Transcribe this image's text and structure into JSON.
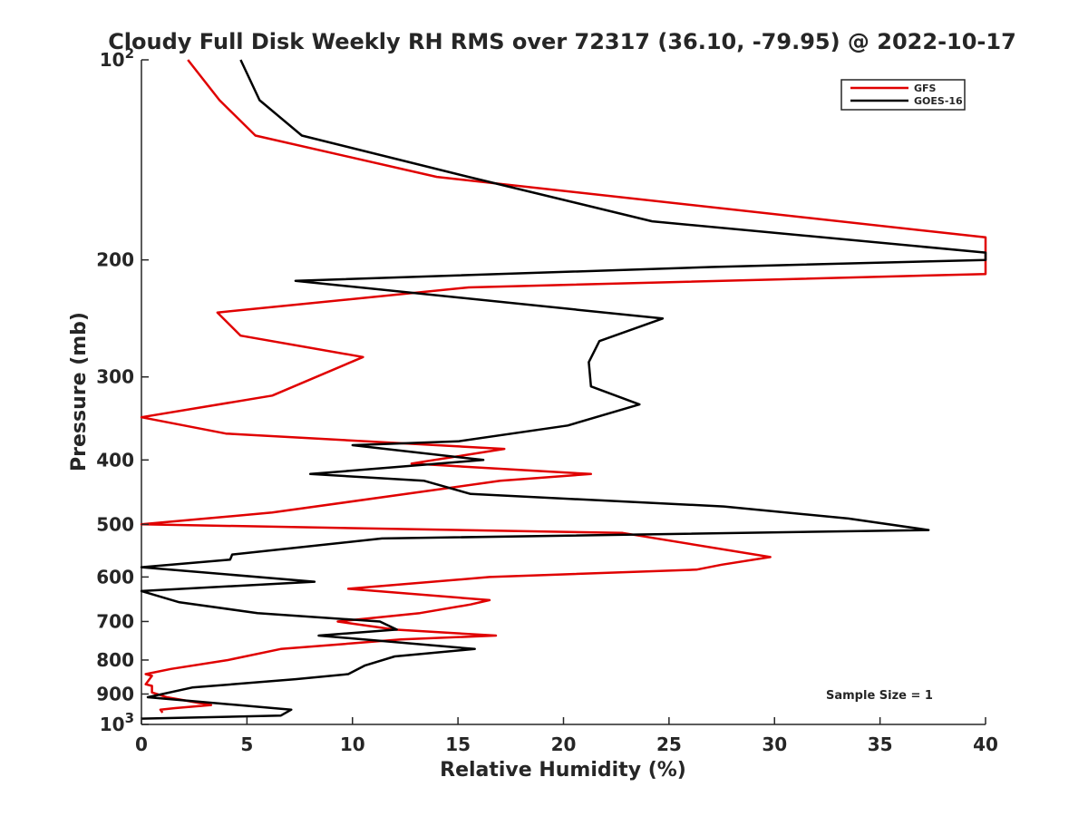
{
  "chart_data": {
    "type": "line",
    "title": "Cloudy Full Disk Weekly RH RMS over 72317 (36.10, -79.95) @ 2022-10-17",
    "xlabel": "Relative Humidity (%)",
    "ylabel": "Pressure (mb)",
    "xlim": [
      0,
      40
    ],
    "ylim": [
      100,
      1000
    ],
    "y_scale": "log",
    "y_reversed": true,
    "grid": false,
    "legend_position": "top-right",
    "x_ticks": [
      "0",
      "5",
      "10",
      "15",
      "20",
      "25",
      "30",
      "35",
      "40"
    ],
    "y_ticks": [
      {
        "value": 100,
        "base": "10",
        "exp": "2"
      },
      {
        "value": 200,
        "label": "200"
      },
      {
        "value": 300,
        "label": "300"
      },
      {
        "value": 400,
        "label": "400"
      },
      {
        "value": 500,
        "label": "500"
      },
      {
        "value": 600,
        "label": "600"
      },
      {
        "value": 700,
        "label": "700"
      },
      {
        "value": 800,
        "label": "800"
      },
      {
        "value": 900,
        "label": "900"
      },
      {
        "value": 1000,
        "base": "10",
        "exp": "3"
      }
    ],
    "annotation": "Sample Size = 1",
    "series": [
      {
        "name": "GFS",
        "color": "#e00000",
        "points": [
          [
            2.2,
            100
          ],
          [
            3.7,
            115
          ],
          [
            5.4,
            130
          ],
          [
            14.0,
            150
          ],
          [
            40.0,
            185
          ],
          [
            40.0,
            210
          ],
          [
            15.5,
            220
          ],
          [
            3.6,
            240
          ],
          [
            4.7,
            260
          ],
          [
            10.5,
            280
          ],
          [
            6.2,
            320
          ],
          [
            0.0,
            345
          ],
          [
            4.0,
            365
          ],
          [
            17.2,
            385
          ],
          [
            12.8,
            405
          ],
          [
            21.3,
            420
          ],
          [
            17.0,
            430
          ],
          [
            6.2,
            480
          ],
          [
            0.0,
            500
          ],
          [
            22.8,
            515
          ],
          [
            29.8,
            560
          ],
          [
            27.5,
            575
          ],
          [
            26.3,
            585
          ],
          [
            16.5,
            600
          ],
          [
            9.8,
            625
          ],
          [
            16.5,
            650
          ],
          [
            15.6,
            660
          ],
          [
            13.2,
            680
          ],
          [
            9.3,
            700
          ],
          [
            12.0,
            720
          ],
          [
            16.8,
            735
          ],
          [
            12.3,
            745
          ],
          [
            6.6,
            770
          ],
          [
            4.1,
            800
          ],
          [
            1.4,
            825
          ],
          [
            0.2,
            840
          ],
          [
            0.5,
            845
          ],
          [
            0.2,
            870
          ],
          [
            0.5,
            875
          ],
          [
            0.5,
            895
          ],
          [
            1.2,
            910
          ],
          [
            3.3,
            935
          ],
          [
            1.6,
            945
          ],
          [
            0.9,
            950
          ],
          [
            1.0,
            960
          ]
        ]
      },
      {
        "name": "GOES-16",
        "color": "#000000",
        "points": [
          [
            4.7,
            100
          ],
          [
            5.6,
            115
          ],
          [
            7.6,
            130
          ],
          [
            15.5,
            150
          ],
          [
            24.2,
            175
          ],
          [
            40.0,
            195
          ],
          [
            40.0,
            200
          ],
          [
            27.0,
            205
          ],
          [
            7.3,
            215
          ],
          [
            24.7,
            245
          ],
          [
            21.7,
            265
          ],
          [
            21.2,
            285
          ],
          [
            21.3,
            310
          ],
          [
            23.6,
            330
          ],
          [
            20.2,
            355
          ],
          [
            15.0,
            375
          ],
          [
            10.0,
            380
          ],
          [
            16.2,
            400
          ],
          [
            8.0,
            420
          ],
          [
            13.4,
            430
          ],
          [
            15.6,
            450
          ],
          [
            27.6,
            470
          ],
          [
            33.5,
            490
          ],
          [
            37.3,
            510
          ],
          [
            11.4,
            525
          ],
          [
            4.3,
            555
          ],
          [
            4.2,
            565
          ],
          [
            0.0,
            580
          ],
          [
            8.2,
            610
          ],
          [
            0.0,
            630
          ],
          [
            1.8,
            655
          ],
          [
            5.5,
            680
          ],
          [
            11.3,
            700
          ],
          [
            12.1,
            720
          ],
          [
            8.4,
            735
          ],
          [
            15.8,
            770
          ],
          [
            12.0,
            790
          ],
          [
            10.6,
            815
          ],
          [
            9.8,
            840
          ],
          [
            7.3,
            855
          ],
          [
            2.4,
            880
          ],
          [
            0.3,
            910
          ],
          [
            7.1,
            950
          ],
          [
            6.6,
            970
          ],
          [
            0.0,
            980
          ]
        ]
      }
    ]
  }
}
